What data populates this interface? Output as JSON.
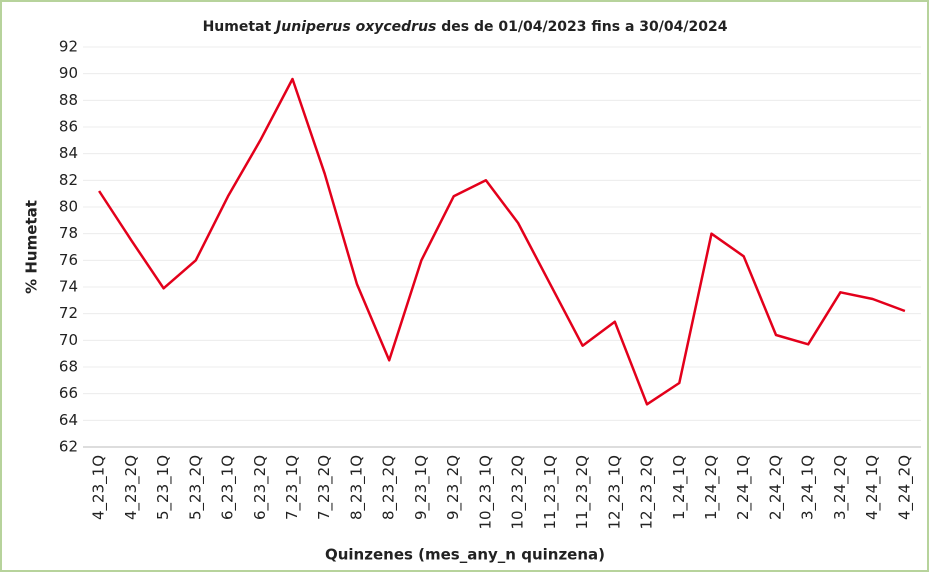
{
  "chart_data": {
    "type": "line",
    "title_parts": [
      "Humetat ",
      "Juniperus oxycedrus",
      " des de 01/04/2023 fins a 30/04/2024"
    ],
    "xlabel": "Quinzenes (mes_any_n quinzena)",
    "ylabel": "% Humetat",
    "categories": [
      "4_23_1Q",
      "4_23_2Q",
      "5_23_1Q",
      "5_23_2Q",
      "6_23_1Q",
      "6_23_2Q",
      "7_23_1Q",
      "7_23_2Q",
      "8_23_1Q",
      "8_23_2Q",
      "9_23_1Q",
      "9_23_2Q",
      "10_23_1Q",
      "10_23_2Q",
      "11_23_1Q",
      "11_23_2Q",
      "12_23_1Q",
      "12_23_2Q",
      "1_24_1Q",
      "1_24_2Q",
      "2_24_1Q",
      "2_24_2Q",
      "3_24_1Q",
      "3_24_2Q",
      "4_24_1Q",
      "4_24_2Q"
    ],
    "values": [
      81.2,
      77.5,
      73.9,
      76.0,
      80.8,
      85.0,
      89.6,
      82.5,
      74.2,
      68.5,
      76.0,
      80.8,
      82.0,
      78.8,
      74.2,
      69.6,
      71.4,
      65.2,
      66.8,
      78.0,
      76.3,
      70.4,
      69.7,
      73.6,
      73.1,
      72.2
    ],
    "color": "#e3001b",
    "ylim": [
      62,
      92
    ],
    "yticks": [
      62,
      64,
      66,
      68,
      70,
      72,
      74,
      76,
      78,
      80,
      82,
      84,
      86,
      88,
      90,
      92
    ],
    "grid": true
  }
}
